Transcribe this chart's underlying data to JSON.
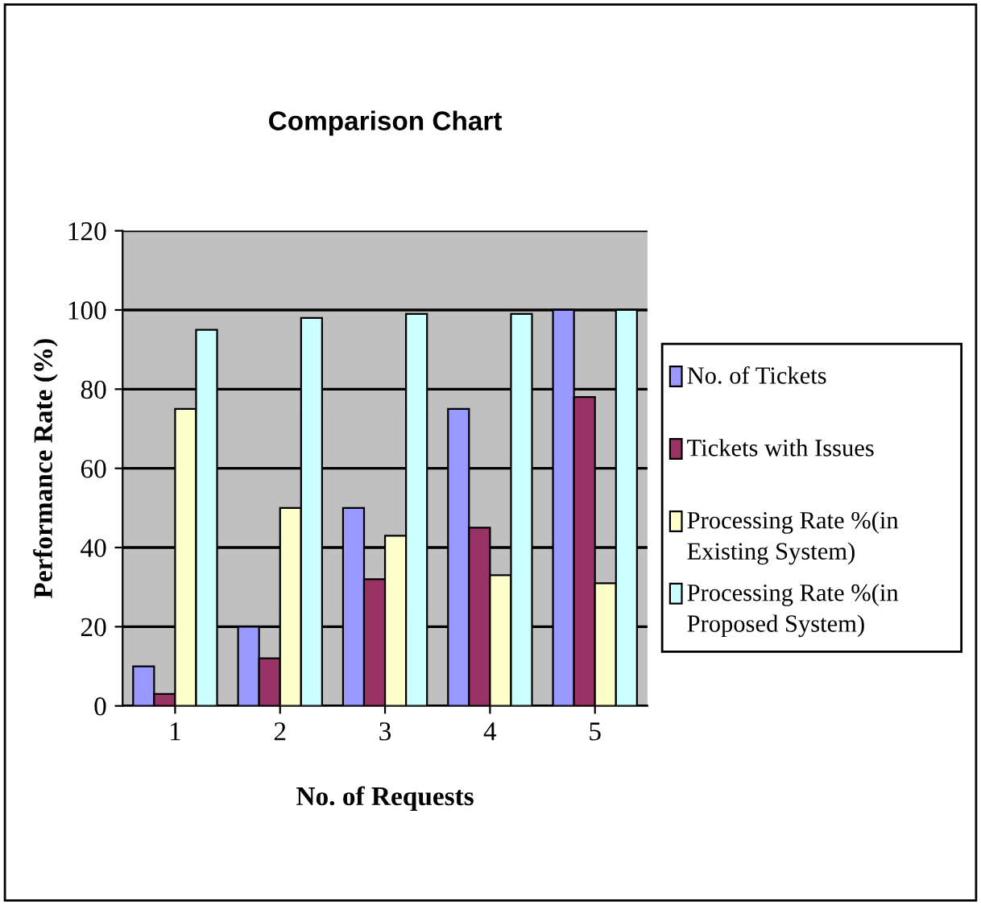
{
  "chart_data": {
    "type": "bar",
    "title": "Comparison Chart",
    "xlabel": "No. of Requests",
    "ylabel": "Performance Rate (%)",
    "categories": [
      "1",
      "2",
      "3",
      "4",
      "5"
    ],
    "series": [
      {
        "name": "No. of Tickets",
        "color": "#9999ff",
        "values": [
          10,
          20,
          50,
          75,
          100
        ]
      },
      {
        "name": "Tickets with Issues",
        "color": "#993366",
        "values": [
          3,
          12,
          32,
          45,
          78
        ]
      },
      {
        "name": "Processing Rate %(in Existing System)",
        "color": "#ffffcc",
        "values": [
          75,
          50,
          43,
          33,
          31
        ]
      },
      {
        "name": "Processing Rate %(in Proposed System)",
        "color": "#ccffff",
        "values": [
          95,
          98,
          99,
          99,
          100
        ]
      }
    ],
    "ylim": [
      0,
      120
    ],
    "yticks": [
      0,
      20,
      40,
      60,
      80,
      100,
      120
    ],
    "grid": "y",
    "legend": "right"
  }
}
